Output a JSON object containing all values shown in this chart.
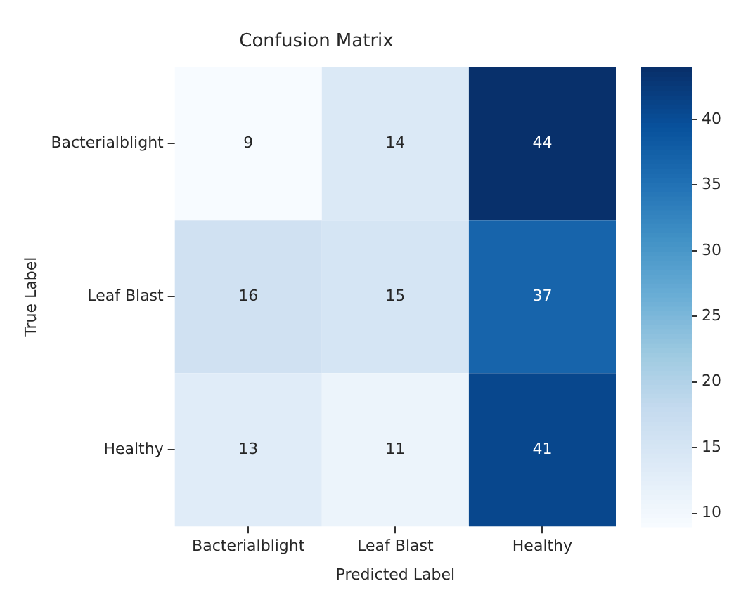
{
  "chart_data": {
    "type": "heatmap",
    "title": "Confusion Matrix",
    "xlabel": "Predicted Label",
    "ylabel": "True Label",
    "categories": [
      "Bacterialblight",
      "Leaf Blast",
      "Healthy"
    ],
    "y_categories": [
      "Bacterialblight",
      "Leaf Blast",
      "Healthy"
    ],
    "cells": [
      [
        9,
        14,
        44
      ],
      [
        16,
        15,
        37
      ],
      [
        13,
        11,
        41
      ]
    ],
    "clim": [
      9,
      44
    ],
    "cticks": [
      10,
      15,
      20,
      25,
      30,
      35,
      40
    ],
    "data_labels": true
  }
}
